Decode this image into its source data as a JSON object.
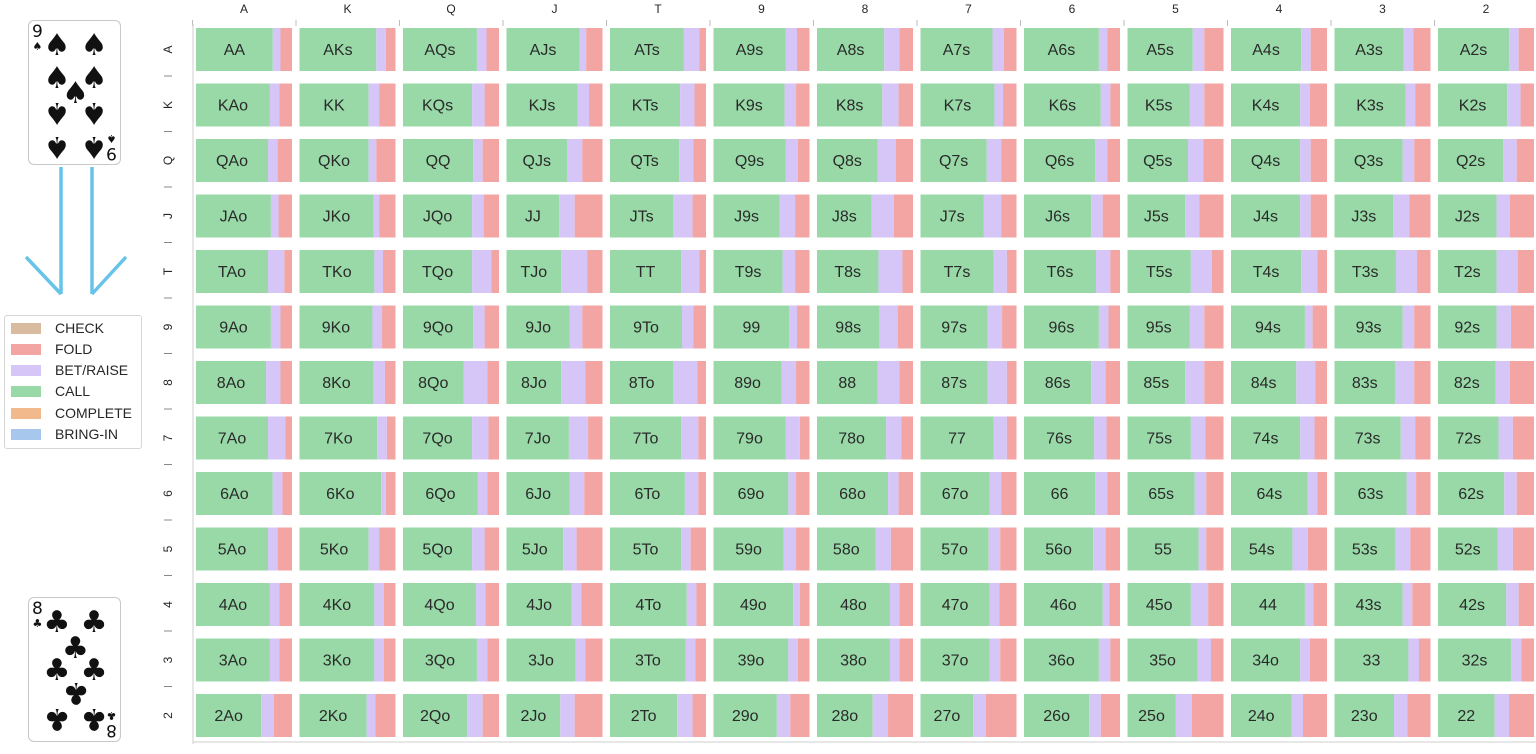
{
  "legend": [
    {
      "label": "CHECK",
      "color": "#d9bba0"
    },
    {
      "label": "FOLD",
      "color": "#f2a5a3"
    },
    {
      "label": "BET/RAISE",
      "color": "#d5c6f7"
    },
    {
      "label": "CALL",
      "color": "#98d9a7"
    },
    {
      "label": "COMPLETE",
      "color": "#f2b98c"
    },
    {
      "label": "BRING-IN",
      "color": "#a7c7ec"
    }
  ],
  "cards": [
    {
      "name": "card-nine-of-spades",
      "rank": "9",
      "suit": "spade",
      "glyph": "♠",
      "pips": 9
    },
    {
      "name": "card-eight-of-clubs",
      "rank": "8",
      "suit": "club",
      "glyph": "♣",
      "pips": 8
    }
  ],
  "chart_data": {
    "type": "bar",
    "orientation": "horizontal-stacked-grid",
    "ranks": [
      "A",
      "K",
      "Q",
      "J",
      "T",
      "9",
      "8",
      "7",
      "6",
      "5",
      "4",
      "3",
      "2"
    ],
    "series_order": [
      "CALL",
      "BET/RAISE",
      "FOLD"
    ],
    "series_colors": {
      "CALL": "#98d9a7",
      "BET/RAISE": "#d5c6f7",
      "FOLD": "#f2a5a3"
    },
    "rows": [
      [
        [
          "AA",
          0.8,
          0.08
        ],
        [
          "AKs",
          0.8,
          0.1
        ],
        [
          "AQs",
          0.77,
          0.1
        ],
        [
          "AJs",
          0.76,
          0.07
        ],
        [
          "ATs",
          0.77,
          0.16
        ],
        [
          "A9s",
          0.75,
          0.12
        ],
        [
          "A8s",
          0.7,
          0.16
        ],
        [
          "A7s",
          0.75,
          0.12
        ],
        [
          "A6s",
          0.78,
          0.09
        ],
        [
          "A5s",
          0.68,
          0.12
        ],
        [
          "A4s",
          0.73,
          0.1
        ],
        [
          "A3s",
          0.72,
          0.1
        ],
        [
          "A2s",
          0.74,
          0.1
        ]
      ],
      [
        [
          "KAo",
          0.77,
          0.1
        ],
        [
          "KK",
          0.72,
          0.11
        ],
        [
          "KQs",
          0.72,
          0.13
        ],
        [
          "KJs",
          0.74,
          0.12
        ],
        [
          "KTs",
          0.73,
          0.15
        ],
        [
          "K9s",
          0.74,
          0.12
        ],
        [
          "K8s",
          0.68,
          0.17
        ],
        [
          "K7s",
          0.77,
          0.09
        ],
        [
          "K6s",
          0.8,
          0.1
        ],
        [
          "K5s",
          0.65,
          0.15
        ],
        [
          "K4s",
          0.72,
          0.1
        ],
        [
          "K3s",
          0.74,
          0.1
        ],
        [
          "K2s",
          0.72,
          0.14
        ]
      ],
      [
        [
          "QAo",
          0.75,
          0.1
        ],
        [
          "QKo",
          0.72,
          0.08
        ],
        [
          "QQ",
          0.73,
          0.1
        ],
        [
          "QJs",
          0.63,
          0.16
        ],
        [
          "QTs",
          0.72,
          0.15
        ],
        [
          "Q9s",
          0.75,
          0.13
        ],
        [
          "Q8s",
          0.63,
          0.19
        ],
        [
          "Q7s",
          0.69,
          0.15
        ],
        [
          "Q6s",
          0.74,
          0.13
        ],
        [
          "Q5s",
          0.63,
          0.16
        ],
        [
          "Q4s",
          0.72,
          0.11
        ],
        [
          "Q3s",
          0.71,
          0.12
        ],
        [
          "Q2s",
          0.68,
          0.14
        ]
      ],
      [
        [
          "JAo",
          0.78,
          0.08
        ],
        [
          "JKo",
          0.77,
          0.06
        ],
        [
          "JQo",
          0.72,
          0.12
        ],
        [
          "JJ",
          0.55,
          0.16
        ],
        [
          "JTs",
          0.66,
          0.2
        ],
        [
          "J9s",
          0.69,
          0.16
        ],
        [
          "J8s",
          0.57,
          0.23
        ],
        [
          "J7s",
          0.66,
          0.18
        ],
        [
          "J6s",
          0.7,
          0.12
        ],
        [
          "J5s",
          0.6,
          0.15
        ],
        [
          "J4s",
          0.72,
          0.11
        ],
        [
          "J3s",
          0.61,
          0.17
        ],
        [
          "J2s",
          0.61,
          0.14
        ]
      ],
      [
        [
          "TAo",
          0.75,
          0.17
        ],
        [
          "TKo",
          0.78,
          0.09
        ],
        [
          "TQo",
          0.72,
          0.2
        ],
        [
          "TJo",
          0.57,
          0.27
        ],
        [
          "TT",
          0.74,
          0.19
        ],
        [
          "T9s",
          0.72,
          0.13
        ],
        [
          "T8s",
          0.64,
          0.25
        ],
        [
          "T7s",
          0.76,
          0.14
        ],
        [
          "T6s",
          0.75,
          0.15
        ],
        [
          "T5s",
          0.66,
          0.22
        ],
        [
          "T4s",
          0.73,
          0.17
        ],
        [
          "T3s",
          0.64,
          0.22
        ],
        [
          "T2s",
          0.61,
          0.22
        ]
      ],
      [
        [
          "9Ao",
          0.78,
          0.1
        ],
        [
          "9Ko",
          0.76,
          0.1
        ],
        [
          "9Qo",
          0.73,
          0.12
        ],
        [
          "9Jo",
          0.66,
          0.13
        ],
        [
          "9To",
          0.75,
          0.12
        ],
        [
          "99",
          0.79,
          0.08
        ],
        [
          "98s",
          0.65,
          0.19
        ],
        [
          "97s",
          0.7,
          0.15
        ],
        [
          "96s",
          0.78,
          0.1
        ],
        [
          "95s",
          0.65,
          0.15
        ],
        [
          "94s",
          0.77,
          0.08
        ],
        [
          "93s",
          0.71,
          0.12
        ],
        [
          "92s",
          0.61,
          0.15
        ]
      ],
      [
        [
          "8Ao",
          0.73,
          0.15
        ],
        [
          "8Ko",
          0.77,
          0.12
        ],
        [
          "8Qo",
          0.63,
          0.25
        ],
        [
          "8Jo",
          0.57,
          0.25
        ],
        [
          "8To",
          0.66,
          0.25
        ],
        [
          "89o",
          0.71,
          0.15
        ],
        [
          "88",
          0.63,
          0.23
        ],
        [
          "87s",
          0.7,
          0.2
        ],
        [
          "86s",
          0.7,
          0.15
        ],
        [
          "85s",
          0.6,
          0.2
        ],
        [
          "84s",
          0.68,
          0.2
        ],
        [
          "83s",
          0.63,
          0.2
        ],
        [
          "82s",
          0.6,
          0.15
        ]
      ],
      [
        [
          "7Ao",
          0.75,
          0.18
        ],
        [
          "7Ko",
          0.81,
          0.1
        ],
        [
          "7Qo",
          0.72,
          0.17
        ],
        [
          "7Jo",
          0.65,
          0.2
        ],
        [
          "7To",
          0.74,
          0.18
        ],
        [
          "79o",
          0.75,
          0.15
        ],
        [
          "78o",
          0.72,
          0.16
        ],
        [
          "77",
          0.76,
          0.14
        ],
        [
          "76s",
          0.73,
          0.13
        ],
        [
          "75s",
          0.66,
          0.15
        ],
        [
          "74s",
          0.72,
          0.15
        ],
        [
          "73s",
          0.69,
          0.15
        ],
        [
          "72s",
          0.63,
          0.15
        ]
      ],
      [
        [
          "6Ao",
          0.8,
          0.1
        ],
        [
          "6Ko",
          0.85,
          0.05
        ],
        [
          "6Qo",
          0.78,
          0.1
        ],
        [
          "6Jo",
          0.66,
          0.15
        ],
        [
          "6To",
          0.78,
          0.14
        ],
        [
          "69o",
          0.78,
          0.08
        ],
        [
          "68o",
          0.74,
          0.11
        ],
        [
          "67o",
          0.72,
          0.12
        ],
        [
          "66",
          0.74,
          0.13
        ],
        [
          "65s",
          0.7,
          0.12
        ],
        [
          "64s",
          0.8,
          0.1
        ],
        [
          "63s",
          0.75,
          0.1
        ],
        [
          "62s",
          0.69,
          0.13
        ]
      ],
      [
        [
          "5Ao",
          0.75,
          0.1
        ],
        [
          "5Ko",
          0.72,
          0.11
        ],
        [
          "5Qo",
          0.72,
          0.13
        ],
        [
          "5Jo",
          0.59,
          0.14
        ],
        [
          "5To",
          0.74,
          0.1
        ],
        [
          "59o",
          0.73,
          0.13
        ],
        [
          "58o",
          0.61,
          0.16
        ],
        [
          "57o",
          0.71,
          0.12
        ],
        [
          "56o",
          0.72,
          0.13
        ],
        [
          "55",
          0.74,
          0.08
        ],
        [
          "54s",
          0.64,
          0.16
        ],
        [
          "53s",
          0.63,
          0.16
        ],
        [
          "52s",
          0.62,
          0.16
        ]
      ],
      [
        [
          "4Ao",
          0.77,
          0.1
        ],
        [
          "4Ko",
          0.78,
          0.1
        ],
        [
          "4Qo",
          0.76,
          0.1
        ],
        [
          "4Jo",
          0.68,
          0.1
        ],
        [
          "4To",
          0.8,
          0.1
        ],
        [
          "49o",
          0.83,
          0.07
        ],
        [
          "48o",
          0.76,
          0.1
        ],
        [
          "47o",
          0.72,
          0.1
        ],
        [
          "46o",
          0.82,
          0.07
        ],
        [
          "45o",
          0.66,
          0.18
        ],
        [
          "44",
          0.77,
          0.09
        ],
        [
          "43s",
          0.71,
          0.1
        ],
        [
          "42s",
          0.71,
          0.13
        ]
      ],
      [
        [
          "3Ao",
          0.77,
          0.1
        ],
        [
          "3Ko",
          0.78,
          0.1
        ],
        [
          "3Qo",
          0.77,
          0.11
        ],
        [
          "3Jo",
          0.72,
          0.1
        ],
        [
          "3To",
          0.79,
          0.1
        ],
        [
          "39o",
          0.78,
          0.1
        ],
        [
          "38o",
          0.76,
          0.1
        ],
        [
          "37o",
          0.72,
          0.11
        ],
        [
          "36o",
          0.78,
          0.12
        ],
        [
          "35o",
          0.73,
          0.14
        ],
        [
          "34o",
          0.72,
          0.1
        ],
        [
          "33",
          0.77,
          0.11
        ],
        [
          "32s",
          0.76,
          0.11
        ]
      ],
      [
        [
          "2Ao",
          0.68,
          0.13
        ],
        [
          "2Ko",
          0.7,
          0.09
        ],
        [
          "2Qo",
          0.67,
          0.16
        ],
        [
          "2Jo",
          0.56,
          0.15
        ],
        [
          "2To",
          0.7,
          0.16
        ],
        [
          "29o",
          0.66,
          0.14
        ],
        [
          "28o",
          0.58,
          0.16
        ],
        [
          "27o",
          0.55,
          0.13
        ],
        [
          "26o",
          0.68,
          0.12
        ],
        [
          "25o",
          0.5,
          0.17
        ],
        [
          "24o",
          0.63,
          0.12
        ],
        [
          "23o",
          0.62,
          0.14
        ],
        [
          "22",
          0.59,
          0.15
        ]
      ]
    ]
  }
}
